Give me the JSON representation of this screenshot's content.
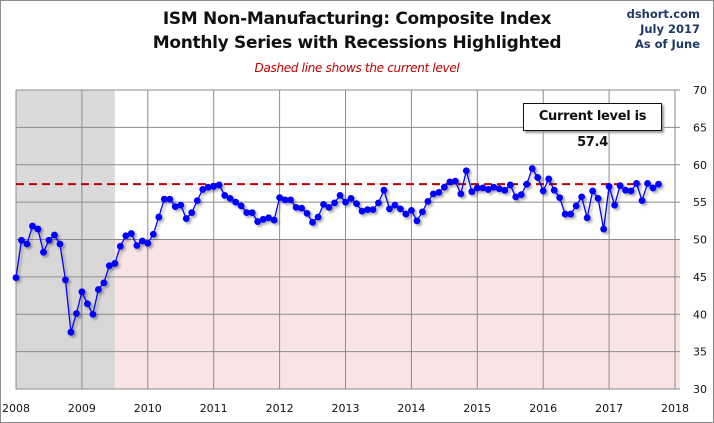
{
  "chart_data": {
    "type": "line",
    "title": "ISM Non-Manufacturing: Composite Index",
    "subtitle": "Monthly Series with Recessions Highlighted",
    "note": "Dashed line shows the current level",
    "source": [
      "dshort.com",
      "July 2017",
      "As of June"
    ],
    "callout": "Current level is 57.4",
    "current_level": 57.4,
    "xlabel": "",
    "ylabel": "",
    "x_start": "2008-01",
    "x_end": "2017-06",
    "xlim": [
      2008,
      2018
    ],
    "ylim": [
      30,
      70
    ],
    "x_ticks": [
      "2008",
      "2009",
      "2010",
      "2011",
      "2012",
      "2013",
      "2014",
      "2015",
      "2016",
      "2017",
      "2018"
    ],
    "y_ticks": [
      "70",
      "65",
      "60",
      "55",
      "50",
      "45",
      "40",
      "35",
      "30"
    ],
    "y_axis_side": "right",
    "grid": true,
    "recessions": [
      {
        "start": 2008.0,
        "end": 2009.5
      }
    ],
    "contraction_shading_below": 50,
    "colors": {
      "series": "#0000ff",
      "current_line": "#c00000",
      "recession": "#d3d3d3",
      "contraction": "#f8e4e4",
      "grid": "#8c8c8c",
      "source_text": "#1f3864"
    },
    "series": [
      {
        "name": "ISM Non-Manufacturing Composite Index",
        "values": [
          44.9,
          49.9,
          49.4,
          51.8,
          51.4,
          48.3,
          49.9,
          50.6,
          49.4,
          44.6,
          37.6,
          40.1,
          43.0,
          41.4,
          40.0,
          43.3,
          44.2,
          46.5,
          46.8,
          49.1,
          50.5,
          50.8,
          49.2,
          49.8,
          49.5,
          50.7,
          53.0,
          55.4,
          55.4,
          54.4,
          54.6,
          52.8,
          53.6,
          55.2,
          56.7,
          57.0,
          57.1,
          57.3,
          55.9,
          55.5,
          55.0,
          54.5,
          53.6,
          53.6,
          52.4,
          52.7,
          52.9,
          52.6,
          55.6,
          55.3,
          55.3,
          54.3,
          54.2,
          53.5,
          52.3,
          53.0,
          54.7,
          54.3,
          54.9,
          55.9,
          55.0,
          55.5,
          54.8,
          53.8,
          54.0,
          54.0,
          54.9,
          56.6,
          54.1,
          54.6,
          54.1,
          53.4,
          53.9,
          52.5,
          53.7,
          55.1,
          56.1,
          56.3,
          57.0,
          57.7,
          57.8,
          56.1,
          59.2,
          56.4,
          56.9,
          56.9,
          56.7,
          57.0,
          56.8,
          56.6,
          57.3,
          55.7,
          56.0,
          57.4,
          59.5,
          58.3,
          56.5,
          58.1,
          56.6,
          55.6,
          53.4,
          53.4,
          54.5,
          55.7,
          52.9,
          56.5,
          55.5,
          51.4,
          57.1,
          54.6,
          57.2,
          56.6,
          56.5,
          57.5,
          55.2,
          57.5,
          56.9,
          57.4
        ]
      }
    ]
  }
}
